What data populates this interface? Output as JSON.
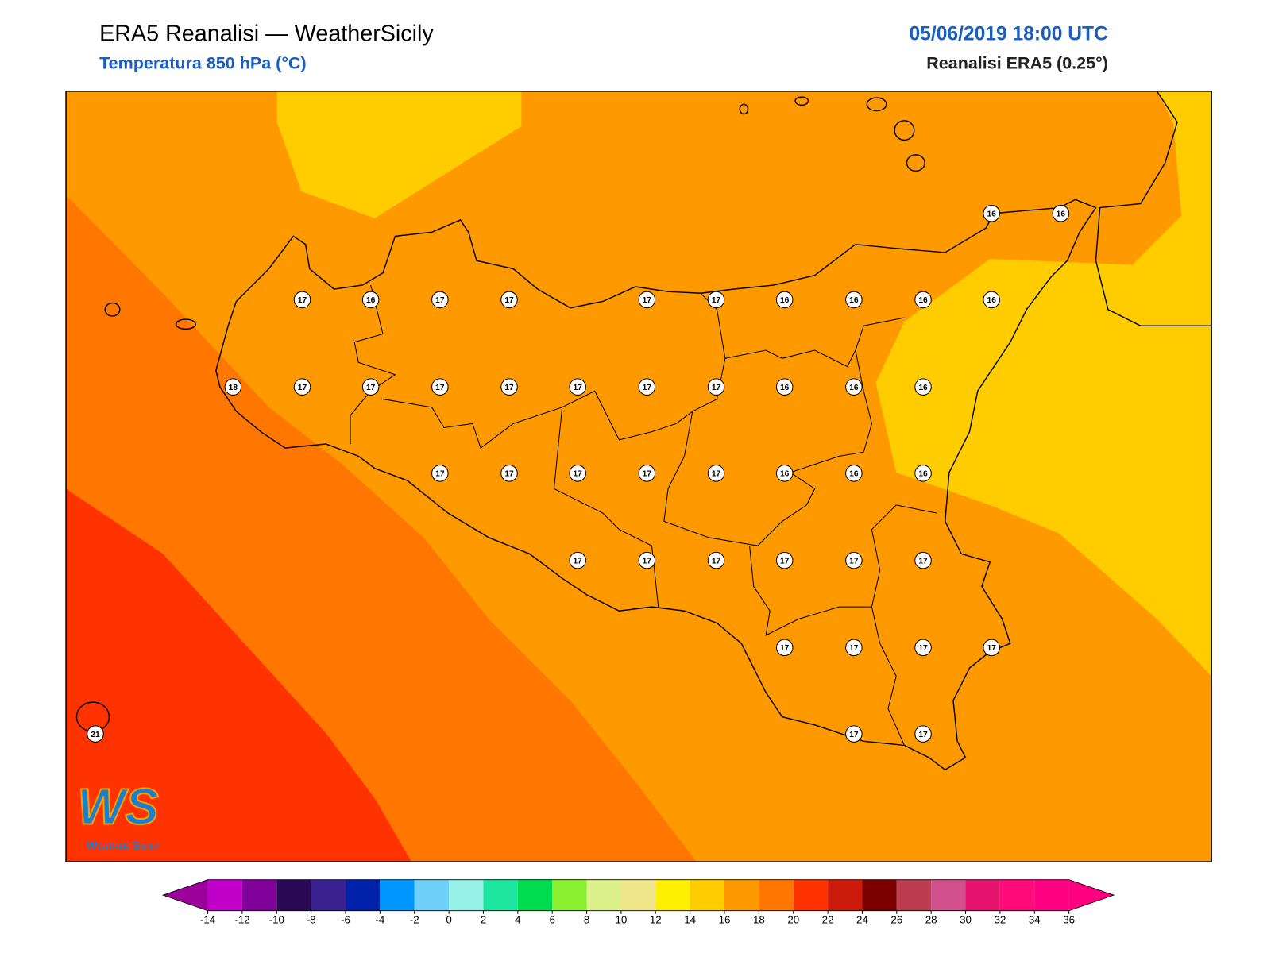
{
  "header": {
    "title": "ERA5 Reanalisi — WeatherSicily",
    "subtitle": "Temperatura 850 hPa (°C)",
    "date": "05/06/2019 18:00 UTC",
    "source": "Reanalisi ERA5 (0.25°)"
  },
  "stations": [
    16,
    16,
    17,
    16,
    17,
    17,
    17,
    17,
    16,
    16,
    16,
    16,
    18,
    17,
    17,
    17,
    17,
    17,
    17,
    17,
    16,
    16,
    16,
    17,
    17,
    17,
    17,
    17,
    16,
    16,
    16,
    17,
    17,
    17,
    17,
    17,
    17,
    17,
    17,
    17,
    17,
    21,
    17,
    17
  ],
  "logo": {
    "mark": "WS",
    "text": "Weather Sicily"
  },
  "colorbar": {
    "ticks": [
      -14,
      -12,
      -10,
      -8,
      -6,
      -4,
      -2,
      0,
      2,
      4,
      6,
      8,
      10,
      12,
      14,
      16,
      18,
      20,
      22,
      24,
      26,
      28,
      30,
      32,
      34,
      36
    ],
    "colors": [
      "#c000c8",
      "#80009a",
      "#2a0a55",
      "#3a2290",
      "#0022aa",
      "#0096ff",
      "#6ecff8",
      "#96f0e6",
      "#1ee6a0",
      "#00dc50",
      "#8cf032",
      "#dcf08c",
      "#f0e68c",
      "#fff000",
      "#ffcc00",
      "#ff9900",
      "#ff7700",
      "#ff3300",
      "#cc1a0a",
      "#7d0000",
      "#be3c50",
      "#d2508c",
      "#e6146e",
      "#ff0a78",
      "#ff0080"
    ],
    "under": "#9b009b",
    "over": "#ff0080"
  }
}
